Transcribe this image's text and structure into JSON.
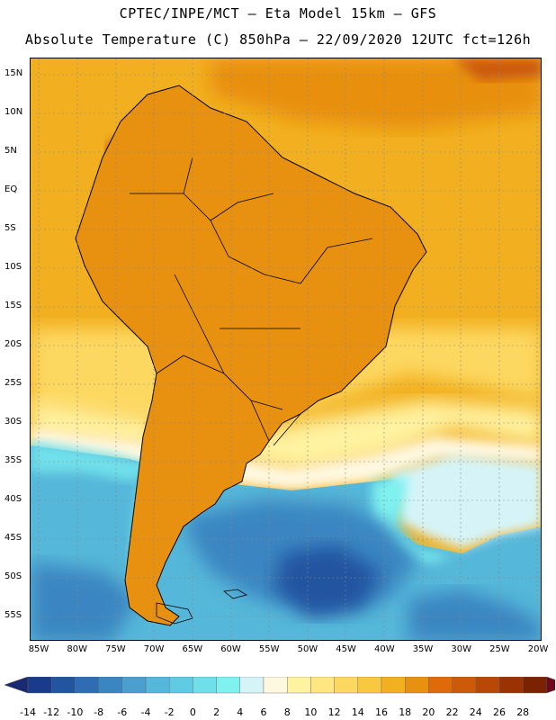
{
  "header": {
    "title_line1": "CPTEC/INPE/MCT –  Eta Model 15km – GFS",
    "title_line2": "Absolute Temperature (C) 850hPa – 22/09/2020 12UTC fct=126h"
  },
  "map": {
    "lat_labels": [
      "15N",
      "10N",
      "5N",
      "EQ",
      "5S",
      "10S",
      "15S",
      "20S",
      "25S",
      "30S",
      "35S",
      "40S",
      "45S",
      "50S",
      "55S"
    ],
    "lon_labels": [
      "85W",
      "80W",
      "75W",
      "70W",
      "65W",
      "60W",
      "55W",
      "50W",
      "45W",
      "40W",
      "35W",
      "30W",
      "25W",
      "20W"
    ]
  },
  "colorbar": {
    "labels": [
      "-14",
      "-12",
      "-10",
      "-8",
      "-6",
      "-4",
      "-2",
      "0",
      "2",
      "4",
      "6",
      "8",
      "10",
      "12",
      "14",
      "16",
      "18",
      "20",
      "22",
      "24",
      "26",
      "28"
    ],
    "colors": [
      "#1a3a8c",
      "#2255a0",
      "#2e6db3",
      "#3a86c2",
      "#4a9fcf",
      "#55b7d9",
      "#5fcbe3",
      "#6fe0ea",
      "#7ff2ef",
      "#d6f4f8",
      "#fff8e0",
      "#fff2a0",
      "#ffe680",
      "#fdd860",
      "#f8c840",
      "#f2b020",
      "#e89010",
      "#e06a0a",
      "#cc5a08",
      "#b84806",
      "#9a3204",
      "#7a2202"
    ],
    "left_arrow_color": "#1a2a70",
    "right_arrow_color": "#6a0a1a"
  }
}
